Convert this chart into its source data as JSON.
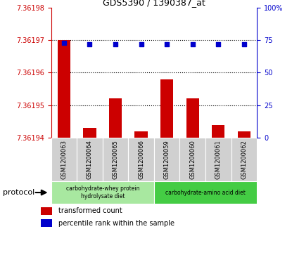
{
  "title": "GDS5390 / 1390387_at",
  "samples": [
    "GSM1200063",
    "GSM1200064",
    "GSM1200065",
    "GSM1200066",
    "GSM1200059",
    "GSM1200060",
    "GSM1200061",
    "GSM1200062"
  ],
  "bar_values": [
    7.36197,
    7.361943,
    7.361952,
    7.361942,
    7.361958,
    7.361952,
    7.361944,
    7.361942
  ],
  "percentile_values": [
    73,
    72,
    72,
    72,
    72,
    72,
    72,
    72
  ],
  "ylim_left": [
    7.36194,
    7.36198
  ],
  "ylim_right": [
    0,
    100
  ],
  "yticks_left": [
    7.36194,
    7.36195,
    7.36196,
    7.36197,
    7.36198
  ],
  "ytick_labels_left": [
    "7.36194",
    "7.36195",
    "7.36196",
    "7.36197",
    "7.36198"
  ],
  "yticks_right": [
    0,
    25,
    50,
    75,
    100
  ],
  "ytick_labels_right": [
    "0",
    "25",
    "50",
    "75",
    "100%"
  ],
  "bar_color": "#cc0000",
  "dot_color": "#0000cc",
  "bg_color": "#d0d0d0",
  "plot_bg": "#ffffff",
  "protocol_groups": [
    {
      "label": "carbohydrate-whey protein\nhydrolysate diet",
      "start": 0,
      "end": 4,
      "color": "#a8e8a0"
    },
    {
      "label": "carbohydrate-amino acid diet",
      "start": 4,
      "end": 8,
      "color": "#44cc44"
    }
  ],
  "legend_bar_label": "transformed count",
  "legend_dot_label": "percentile rank within the sample",
  "protocol_label": "protocol",
  "grid_lines": [
    7.36195,
    7.36196,
    7.36197
  ],
  "bar_width": 0.5
}
